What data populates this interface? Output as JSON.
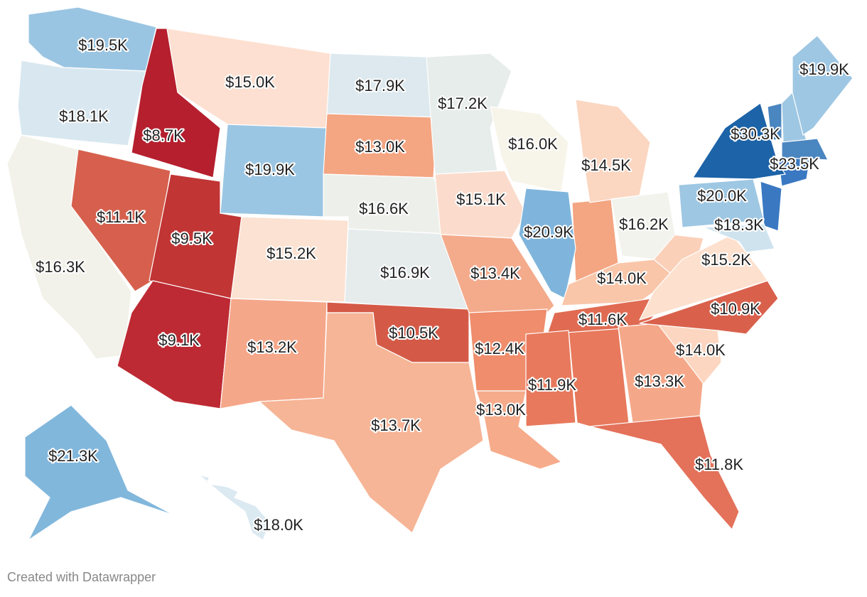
{
  "chart_data": {
    "type": "choropleth",
    "values": [
      19.5,
      18.1,
      16.3,
      8.7,
      11.1,
      9.5,
      9.1,
      15.0,
      19.9,
      15.2,
      13.2,
      17.9,
      13.0,
      16.6,
      16.9,
      10.5,
      13.7,
      17.2,
      15.1,
      13.4,
      12.4,
      13.0,
      16.0,
      20.9,
      14.5,
      14.0,
      11.6,
      11.9,
      13.3,
      11.8,
      14.0,
      10.9,
      15.2,
      16.2,
      20.0,
      30.3,
      23.5,
      19.9,
      18.3,
      21.3,
      18.0
    ],
    "value_labels": [
      "$19.5K",
      "$18.1K",
      "$16.3K",
      "$8.7K",
      "$11.1K",
      "$9.5K",
      "$9.1K",
      "$15.0K",
      "$19.9K",
      "$15.2K",
      "$13.2K",
      "$17.9K",
      "$13.0K",
      "$16.6K",
      "$16.9K",
      "$10.5K",
      "$13.7K",
      "$17.2K",
      "$15.1K",
      "$13.4K",
      "$12.4K",
      "$13.0K",
      "$16.0K",
      "$20.9K",
      "$14.5K",
      "$14.0K",
      "$11.6K",
      "$11.9K",
      "$13.3K",
      "$11.8K",
      "$14.0K",
      "$10.9K",
      "$15.2K",
      "$16.2K",
      "$20.0K",
      "$30.3K",
      "$23.5K",
      "$19.9K",
      "$18.3K",
      "$21.3K",
      "$18.0K"
    ],
    "colors": [
      "#9ac5e2",
      "#d9e8f0",
      "#f2f2ea",
      "#b51f2e",
      "#d6604d",
      "#c13535",
      "#bd2a33",
      "#fde0d1",
      "#9bc6e3",
      "#fce2d2",
      "#f5a78a",
      "#dde9ef",
      "#f4a582",
      "#edf0ea",
      "#e6ecec",
      "#d45a47",
      "#f6b596",
      "#e7edea",
      "#fbdccc",
      "#f3ab8c",
      "#ef8d6c",
      "#f6ab8b",
      "#f7f4e9",
      "#7fb5dc",
      "#fbd6c1",
      "#f9c6aa",
      "#e06b52",
      "#e8795c",
      "#f5a889",
      "#e4715a",
      "#fcd6c0",
      "#d9614c",
      "#fde0ce",
      "#f3f3ed",
      "#9ec7e3",
      "#1c63a8",
      "#4a86c0",
      "#9ec7e3",
      "#cfe3ef",
      "#82b7dc",
      "#dbe9f1"
    ],
    "credit": "Created with Datawrapper"
  }
}
